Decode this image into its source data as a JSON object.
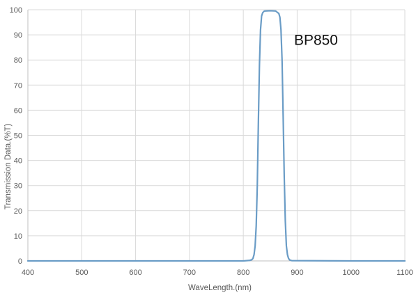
{
  "chart_data": {
    "type": "line",
    "title": "",
    "xlabel": "WaveLength.(nm)",
    "ylabel": "Transmission Data.(%T)",
    "xlim": [
      400,
      1100
    ],
    "ylim": [
      0,
      100
    ],
    "xticks": [
      400,
      500,
      600,
      700,
      800,
      900,
      1000,
      1100
    ],
    "yticks": [
      0,
      10,
      20,
      30,
      40,
      50,
      60,
      70,
      80,
      90,
      100
    ],
    "grid": true,
    "legend": "none",
    "annotations": [
      {
        "text": "BP850",
        "x": 935,
        "y": 88
      }
    ],
    "colors": {
      "line": "#6a9cc6",
      "grid": "#d9d9d9",
      "axis": "#bfbfbf"
    },
    "series": [
      {
        "x": [
          400,
          500,
          600,
          700,
          800,
          812,
          816,
          818,
          820,
          822,
          824,
          826,
          828,
          830,
          832,
          834,
          836,
          838,
          840,
          850,
          860,
          866,
          868,
          870,
          872,
          874,
          876,
          878,
          880,
          882,
          884,
          886,
          890,
          1000,
          1100
        ],
        "y": [
          0,
          0,
          0,
          0,
          0,
          0.2,
          0.5,
          1,
          2.5,
          6,
          14,
          30,
          55,
          78,
          92,
          97.5,
          98.8,
          99.3,
          99.5,
          99.6,
          99.5,
          98.5,
          97,
          92,
          80,
          58,
          34,
          16,
          6,
          2.5,
          1,
          0.4,
          0.1,
          0,
          0
        ]
      }
    ]
  }
}
